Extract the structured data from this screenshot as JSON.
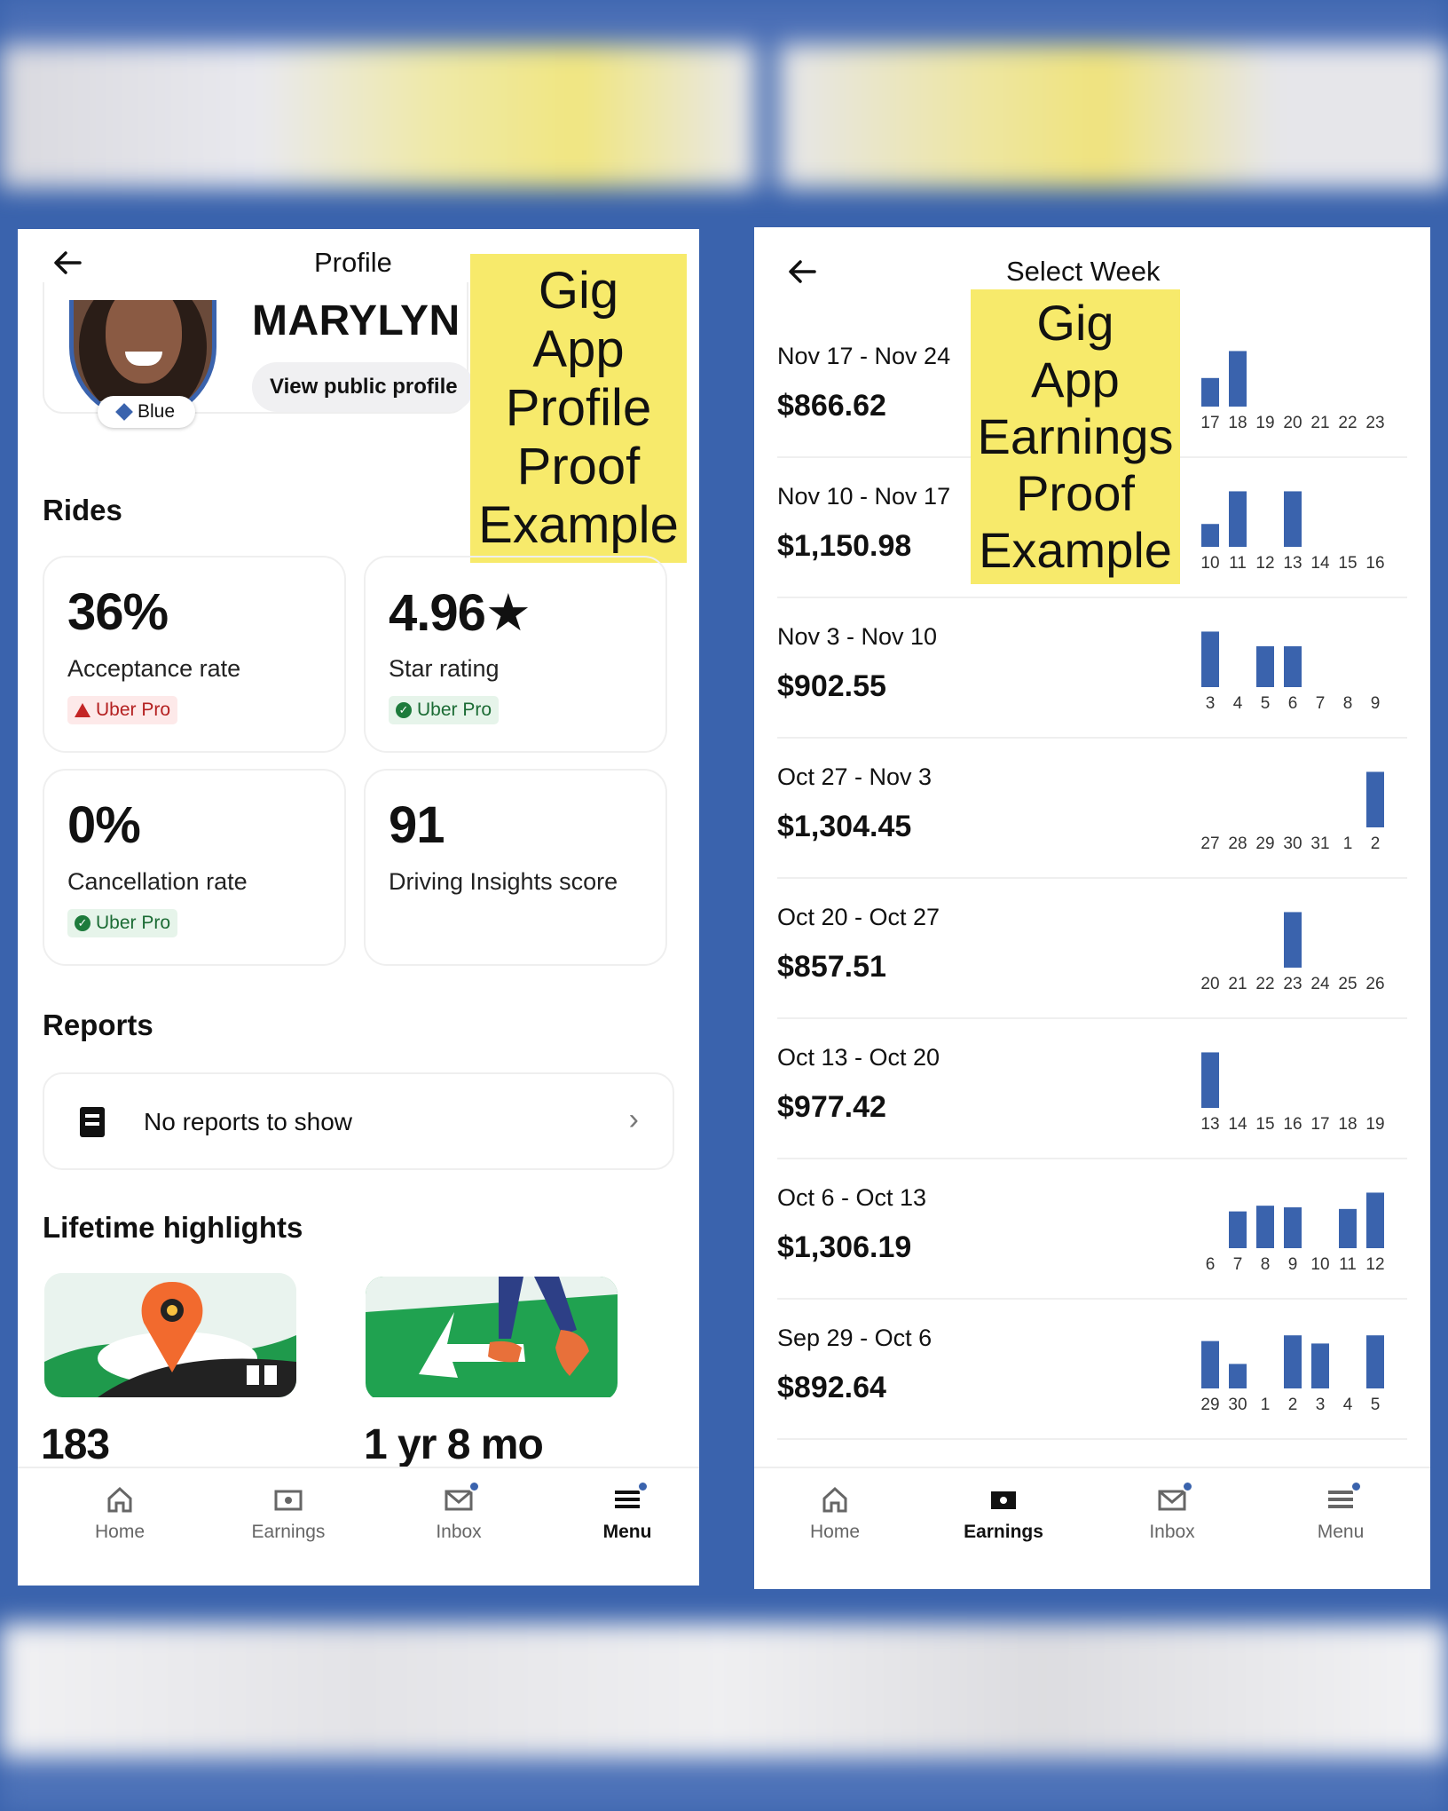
{
  "colors": {
    "accent": "#3a63ad",
    "sticker": "#f7ea6b",
    "warn": "#c32525",
    "ok": "#1e7b3c"
  },
  "left": {
    "header_title": "Profile",
    "name": "MARYLYN",
    "view_profile": "View public profile",
    "tier_badge": "Blue",
    "sticker_lines": [
      "Gig",
      "App",
      "Profile",
      "Proof",
      "Example"
    ],
    "rides_title": "Rides",
    "stats": [
      {
        "value": "36%",
        "label": "Acceptance rate",
        "pill": "Uber Pro",
        "pill_type": "warn"
      },
      {
        "value": "4.96★",
        "label": "Star rating",
        "pill": "Uber Pro",
        "pill_type": "ok"
      },
      {
        "value": "0%",
        "label": "Cancellation rate",
        "pill": "Uber Pro",
        "pill_type": "ok"
      },
      {
        "value": "91",
        "label": "Driving Insights score"
      }
    ],
    "reports_title": "Reports",
    "reports_text": "No reports to show",
    "highlights_title": "Lifetime highlights",
    "highlights": [
      {
        "value": "183"
      },
      {
        "value": "1 yr 8 mo"
      }
    ],
    "tabs": [
      {
        "label": "Home",
        "icon": "home-icon"
      },
      {
        "label": "Earnings",
        "icon": "earnings-icon"
      },
      {
        "label": "Inbox",
        "icon": "inbox-icon"
      },
      {
        "label": "Menu",
        "icon": "menu-icon"
      }
    ],
    "active_tab": "Menu"
  },
  "right": {
    "header_title": "Select Week",
    "sticker_lines": [
      "Gig",
      "App",
      "Earnings",
      "Proof",
      "Example"
    ],
    "weeks": [
      {
        "range": "Nov 17 - Nov 24",
        "amount": "$866.62",
        "days": [
          "17",
          "18",
          "19",
          "20",
          "21",
          "22",
          "23"
        ],
        "bars": [
          0.35,
          0.68,
          0,
          0,
          0,
          0,
          0
        ]
      },
      {
        "range": "Nov 10 - Nov 17",
        "amount": "$1,150.98",
        "days": [
          "10",
          "11",
          "12",
          "13",
          "14",
          "15",
          "16"
        ],
        "bars": [
          0.28,
          0.68,
          0,
          0.68,
          0,
          0,
          0
        ]
      },
      {
        "range": "Nov 3 - Nov 10",
        "amount": "$902.55",
        "days": [
          "3",
          "4",
          "5",
          "6",
          "7",
          "8",
          "9"
        ],
        "bars": [
          0.68,
          0,
          0.5,
          0.5,
          0,
          0,
          0
        ]
      },
      {
        "range": "Oct 27 - Nov 3",
        "amount": "$1,304.45",
        "days": [
          "27",
          "28",
          "29",
          "30",
          "31",
          "1",
          "2"
        ],
        "bars": [
          0,
          0,
          0,
          0,
          0,
          0,
          0.68
        ]
      },
      {
        "range": "Oct 20 - Oct 27",
        "amount": "$857.51",
        "days": [
          "20",
          "21",
          "22",
          "23",
          "24",
          "25",
          "26"
        ],
        "bars": [
          0,
          0,
          0,
          0.68,
          0,
          0,
          0
        ]
      },
      {
        "range": "Oct 13 - Oct 20",
        "amount": "$977.42",
        "days": [
          "13",
          "14",
          "15",
          "16",
          "17",
          "18",
          "19"
        ],
        "bars": [
          0.68,
          0,
          0,
          0,
          0,
          0,
          0
        ]
      },
      {
        "range": "Oct 6 - Oct 13",
        "amount": "$1,306.19",
        "days": [
          "6",
          "7",
          "8",
          "9",
          "10",
          "11",
          "12"
        ],
        "bars": [
          0,
          0.45,
          0.52,
          0.5,
          0,
          0.48,
          0.68
        ]
      },
      {
        "range": "Sep 29 - Oct 6",
        "amount": "$892.64",
        "days": [
          "29",
          "30",
          "1",
          "2",
          "3",
          "4",
          "5"
        ],
        "bars": [
          0.58,
          0.3,
          0,
          0.65,
          0.55,
          0,
          0.65
        ]
      }
    ],
    "tabs": [
      {
        "label": "Home",
        "icon": "home-icon"
      },
      {
        "label": "Earnings",
        "icon": "earnings-icon"
      },
      {
        "label": "Inbox",
        "icon": "inbox-icon"
      },
      {
        "label": "Menu",
        "icon": "menu-icon"
      }
    ],
    "active_tab": "Earnings"
  }
}
